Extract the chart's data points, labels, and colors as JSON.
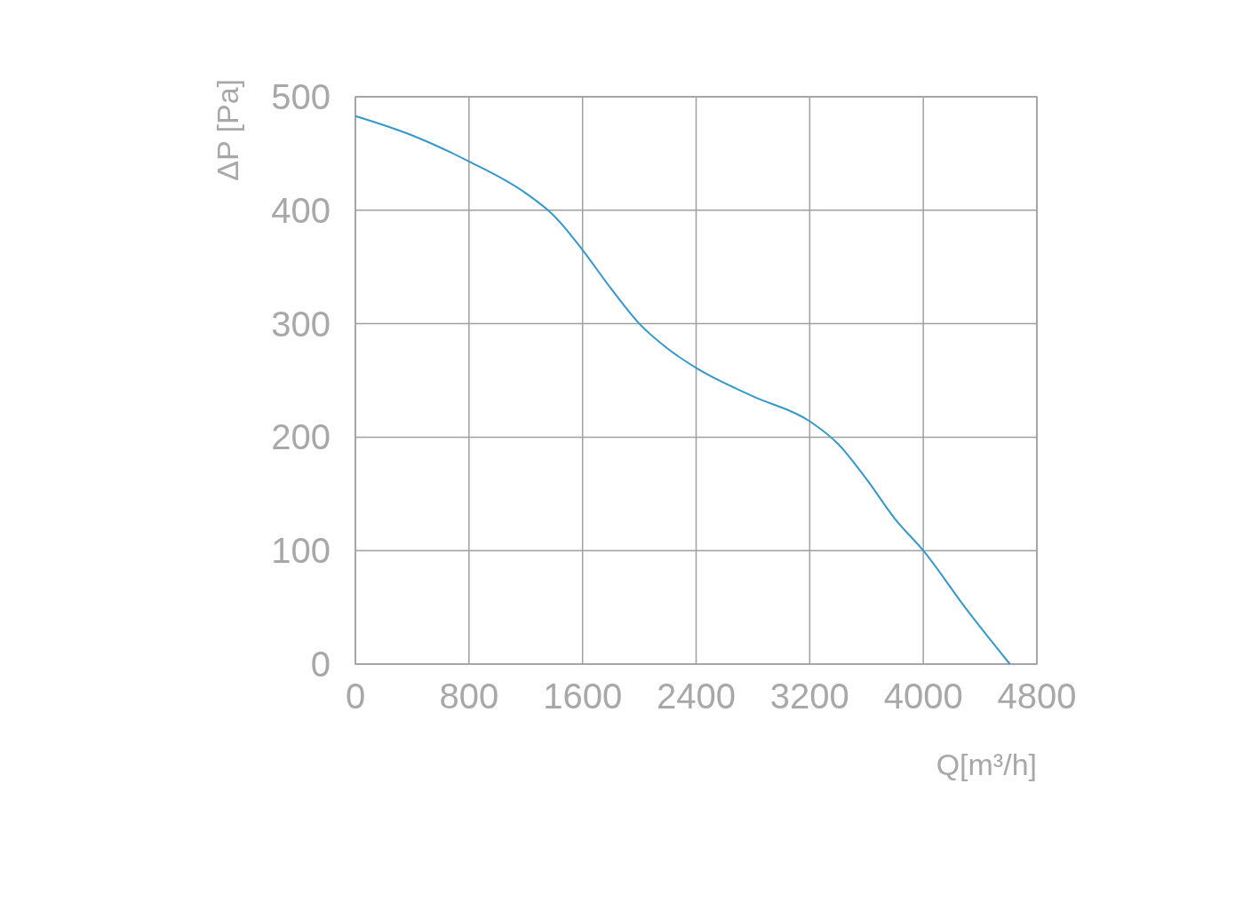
{
  "chart_data": {
    "type": "line",
    "xlabel": "Q[m³/h]",
    "ylabel": "ΔP [Pa]",
    "x": [
      0,
      400,
      800,
      1200,
      1400,
      1600,
      1800,
      2000,
      2200,
      2400,
      2800,
      3200,
      3400,
      3600,
      3800,
      4000,
      4300,
      4610
    ],
    "series": [
      {
        "color": "#3399cc",
        "values": [
          483,
          466,
          443,
          415,
          395,
          365,
          331,
          300,
          278,
          261,
          236,
          214,
          194,
          163,
          128,
          100,
          49,
          0
        ]
      }
    ],
    "xlim": [
      0,
      4800
    ],
    "xticks": [
      0,
      800,
      1600,
      2400,
      3200,
      4000,
      4800
    ],
    "ylim": [
      0,
      500
    ],
    "yticks": [
      0,
      100,
      200,
      300,
      400,
      500
    ],
    "grid": true,
    "marker": "none",
    "line_style": "solid"
  }
}
